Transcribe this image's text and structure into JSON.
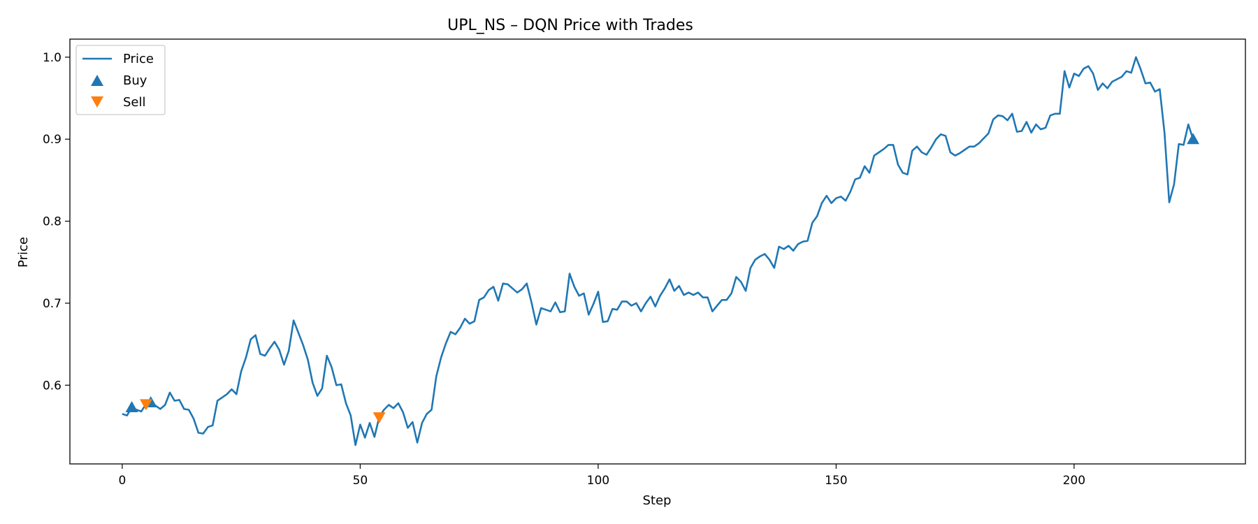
{
  "chart_data": {
    "type": "line",
    "title": "UPL_NS – DQN Price with Trades",
    "xlabel": "Step",
    "ylabel": "Price",
    "xlim": [
      -11,
      236
    ],
    "ylim": [
      0.504,
      1.022
    ],
    "xticks": [
      0,
      50,
      100,
      150,
      200
    ],
    "yticks": [
      0.6,
      0.7,
      0.8,
      0.9,
      1.0
    ],
    "xtick_labels": [
      "0",
      "50",
      "100",
      "150",
      "200"
    ],
    "ytick_labels": [
      "0.6",
      "0.7",
      "0.8",
      "0.9",
      "1.0"
    ],
    "grid": false,
    "legend_position": "upper left",
    "legend": [
      {
        "label": "Price",
        "kind": "line"
      },
      {
        "label": "Buy",
        "kind": "up-triangle"
      },
      {
        "label": "Sell",
        "kind": "down-triangle"
      }
    ],
    "colors": {
      "price": "#1f77b4",
      "buy": "#1f77b4",
      "sell": "#ff7f0e"
    },
    "series": [
      {
        "name": "Price",
        "x": [
          0,
          1,
          2,
          3,
          4,
          5,
          6,
          7,
          8,
          9,
          10,
          11,
          12,
          13,
          14,
          15,
          16,
          17,
          18,
          19,
          20,
          21,
          22,
          23,
          24,
          25,
          26,
          27,
          28,
          29,
          30,
          31,
          32,
          33,
          34,
          35,
          36,
          37,
          38,
          39,
          40,
          41,
          42,
          43,
          44,
          45,
          46,
          47,
          48,
          49,
          50,
          51,
          52,
          53,
          54,
          55,
          56,
          57,
          58,
          59,
          60,
          61,
          62,
          63,
          64,
          65,
          66,
          67,
          68,
          69,
          70,
          71,
          72,
          73,
          74,
          75,
          76,
          77,
          78,
          79,
          80,
          81,
          82,
          83,
          84,
          85,
          86,
          87,
          88,
          89,
          90,
          91,
          92,
          93,
          94,
          95,
          96,
          97,
          98,
          99,
          100,
          101,
          102,
          103,
          104,
          105,
          106,
          107,
          108,
          109,
          110,
          111,
          112,
          113,
          114,
          115,
          116,
          117,
          118,
          119,
          120,
          121,
          122,
          123,
          124,
          125,
          126,
          127,
          128,
          129,
          130,
          131,
          132,
          133,
          134,
          135,
          136,
          137,
          138,
          139,
          140,
          141,
          142,
          143,
          144,
          145,
          146,
          147,
          148,
          149,
          150,
          151,
          152,
          153,
          154,
          155,
          156,
          157,
          158,
          159,
          160,
          161,
          162,
          163,
          164,
          165,
          166,
          167,
          168,
          169,
          170,
          171,
          172,
          173,
          174,
          175,
          176,
          177,
          178,
          179,
          180,
          181,
          182,
          183,
          184,
          185,
          186,
          187,
          188,
          189,
          190,
          191,
          192,
          193,
          194,
          195,
          196,
          197,
          198,
          199,
          200,
          201,
          202,
          203,
          204,
          205,
          206,
          207,
          208,
          209,
          210,
          211,
          212,
          213,
          214,
          215,
          216,
          217,
          218,
          219,
          220,
          221,
          222,
          223,
          224,
          225
        ],
        "y": [
          0.565,
          0.563,
          0.573,
          0.57,
          0.568,
          0.577,
          0.579,
          0.575,
          0.571,
          0.576,
          0.591,
          0.581,
          0.582,
          0.571,
          0.57,
          0.559,
          0.542,
          0.541,
          0.549,
          0.551,
          0.581,
          0.585,
          0.589,
          0.595,
          0.589,
          0.617,
          0.634,
          0.656,
          0.661,
          0.638,
          0.636,
          0.645,
          0.653,
          0.643,
          0.625,
          0.642,
          0.679,
          0.664,
          0.649,
          0.631,
          0.603,
          0.587,
          0.596,
          0.636,
          0.622,
          0.6,
          0.601,
          0.578,
          0.563,
          0.527,
          0.552,
          0.536,
          0.554,
          0.537,
          0.561,
          0.57,
          0.576,
          0.572,
          0.578,
          0.567,
          0.548,
          0.555,
          0.53,
          0.554,
          0.565,
          0.57,
          0.611,
          0.634,
          0.651,
          0.665,
          0.662,
          0.67,
          0.681,
          0.675,
          0.678,
          0.704,
          0.707,
          0.716,
          0.72,
          0.703,
          0.724,
          0.723,
          0.718,
          0.713,
          0.717,
          0.724,
          0.701,
          0.674,
          0.694,
          0.692,
          0.69,
          0.701,
          0.689,
          0.69,
          0.736,
          0.72,
          0.709,
          0.712,
          0.686,
          0.699,
          0.714,
          0.677,
          0.678,
          0.693,
          0.692,
          0.702,
          0.702,
          0.697,
          0.7,
          0.69,
          0.7,
          0.708,
          0.696,
          0.709,
          0.718,
          0.729,
          0.715,
          0.721,
          0.71,
          0.713,
          0.71,
          0.713,
          0.707,
          0.707,
          0.69,
          0.697,
          0.704,
          0.704,
          0.712,
          0.732,
          0.726,
          0.715,
          0.743,
          0.753,
          0.757,
          0.76,
          0.753,
          0.743,
          0.769,
          0.766,
          0.77,
          0.764,
          0.772,
          0.775,
          0.776,
          0.798,
          0.806,
          0.822,
          0.831,
          0.822,
          0.828,
          0.83,
          0.825,
          0.836,
          0.851,
          0.853,
          0.867,
          0.859,
          0.88,
          0.884,
          0.888,
          0.893,
          0.893,
          0.869,
          0.859,
          0.857,
          0.886,
          0.891,
          0.884,
          0.881,
          0.89,
          0.9,
          0.906,
          0.904,
          0.884,
          0.88,
          0.883,
          0.887,
          0.891,
          0.891,
          0.895,
          0.901,
          0.907,
          0.924,
          0.929,
          0.928,
          0.923,
          0.931,
          0.909,
          0.91,
          0.921,
          0.908,
          0.918,
          0.912,
          0.914,
          0.929,
          0.931,
          0.931,
          0.983,
          0.963,
          0.98,
          0.977,
          0.986,
          0.989,
          0.98,
          0.96,
          0.968,
          0.962,
          0.97,
          0.973,
          0.976,
          0.983,
          0.981,
          1.0,
          0.985,
          0.968,
          0.969,
          0.958,
          0.961,
          0.908,
          0.823,
          0.845,
          0.894,
          0.893,
          0.918,
          0.9
        ]
      },
      {
        "name": "Buy",
        "x": [
          2,
          6,
          225
        ],
        "y": [
          0.573,
          0.579,
          0.9
        ]
      },
      {
        "name": "Sell",
        "x": [
          5,
          54
        ],
        "y": [
          0.577,
          0.561
        ]
      }
    ]
  }
}
